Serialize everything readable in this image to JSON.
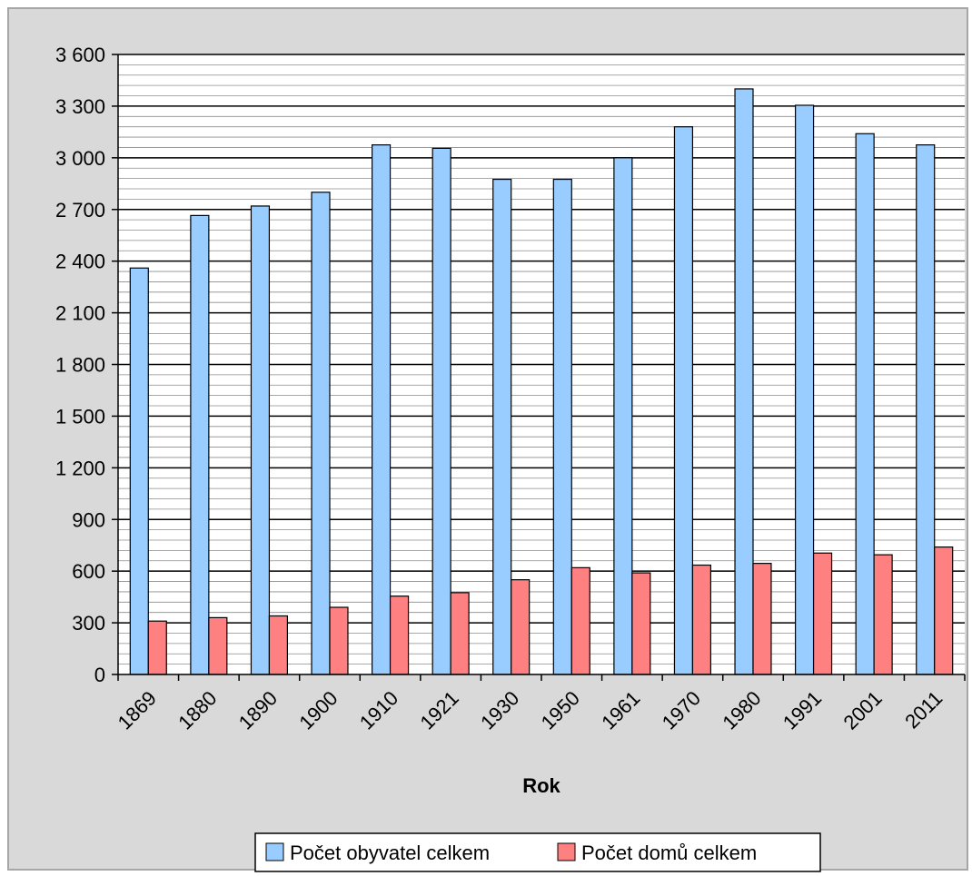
{
  "chart_data": {
    "type": "bar",
    "title": "",
    "xlabel": "Rok",
    "ylabel": "",
    "categories": [
      "1869",
      "1880",
      "1890",
      "1900",
      "1910",
      "1921",
      "1930",
      "1950",
      "1961",
      "1970",
      "1980",
      "1991",
      "2001",
      "2011"
    ],
    "series": [
      {
        "name": "Počet obyvatel celkem",
        "color": "#99ccff",
        "values": [
          2360,
          2665,
          2720,
          2800,
          3075,
          3055,
          2875,
          2875,
          3000,
          3180,
          3400,
          3305,
          3140,
          3075
        ]
      },
      {
        "name": "Počet domů celkem",
        "color": "#ff8080",
        "values": [
          310,
          330,
          340,
          390,
          455,
          475,
          550,
          620,
          590,
          635,
          645,
          705,
          695,
          740
        ]
      }
    ],
    "ylim": [
      0,
      3600
    ],
    "y_ticks": [
      "0",
      "300",
      "600",
      "900",
      "1 200",
      "1 500",
      "1 800",
      "2 100",
      "2 400",
      "2 700",
      "3 000",
      "3 300",
      "3 600"
    ],
    "y_tick_values": [
      0,
      300,
      600,
      900,
      1200,
      1500,
      1800,
      2100,
      2400,
      2700,
      3000,
      3300,
      3600
    ],
    "minor_gridlines": true,
    "legend_position": "bottom"
  }
}
